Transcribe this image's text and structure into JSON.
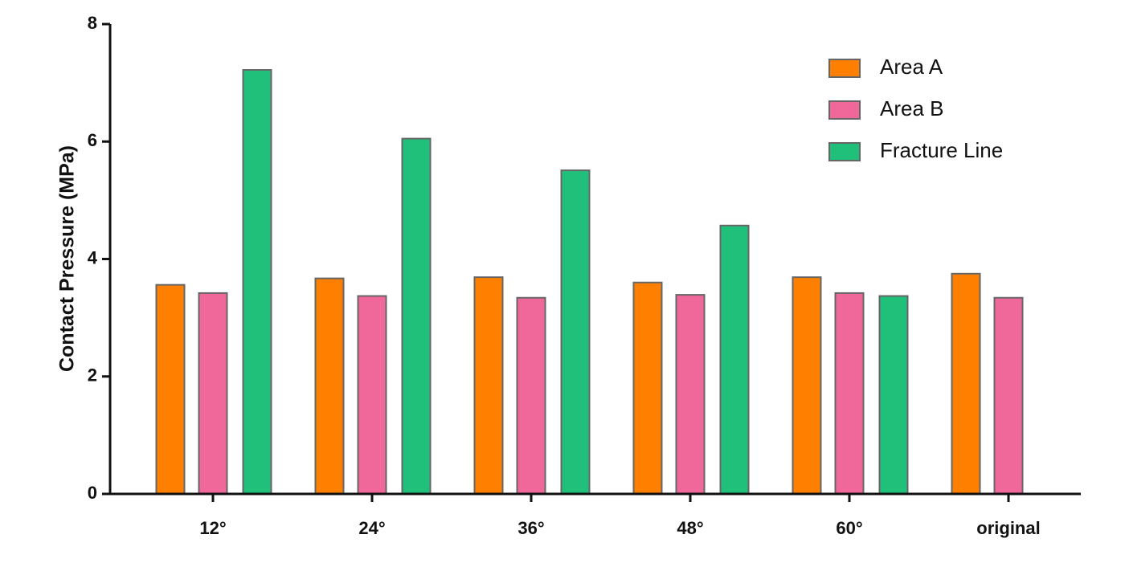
{
  "chart_data": {
    "type": "bar",
    "y_label": "Contact Pressure (MPa)",
    "categories": [
      "12°",
      "24°",
      "36°",
      "48°",
      "60°",
      "original"
    ],
    "series": [
      {
        "name": "Area A",
        "color": "#ff8000",
        "values": [
          3.56,
          3.67,
          3.69,
          3.6,
          3.69,
          3.75
        ]
      },
      {
        "name": "Area B",
        "color": "#f0679a",
        "values": [
          3.42,
          3.37,
          3.34,
          3.39,
          3.42,
          3.34
        ]
      },
      {
        "name": "Fracture Line",
        "color": "#21c07a",
        "values": [
          7.22,
          6.05,
          5.51,
          4.57,
          3.37,
          null
        ]
      }
    ],
    "ylim": [
      0,
      8
    ],
    "yticks": [
      0,
      2,
      4,
      6,
      8
    ],
    "legend": "upper right"
  }
}
